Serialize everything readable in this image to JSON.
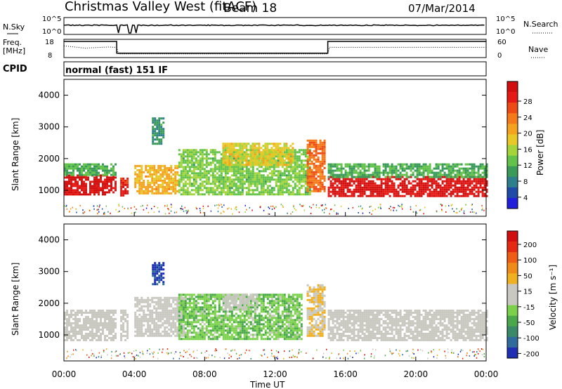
{
  "header": {
    "station": "Christmas Valley West (fitACF)",
    "beam": "Beam 18",
    "date": "07/Mar/2014"
  },
  "strips": {
    "nsky_label": "N.Sky",
    "nsky_ticks": [
      "10^5",
      "10^0"
    ],
    "nsearch_label": "N.Search",
    "freq_label": "Freq.",
    "freq_unit": "[MHz]",
    "freq_ticks": [
      "18",
      "8"
    ],
    "nave_label": "Nave",
    "nave_ticks": [
      "60",
      "0"
    ],
    "cpid_label": "CPID",
    "cpid_text": "normal (fast) 151 IF"
  },
  "axes": {
    "ylabel": "Slant Range [km]",
    "xlabel": "Time UT",
    "y_ticks": [
      "4000",
      "3000",
      "2000",
      "1000"
    ],
    "x_ticks": [
      "00:00",
      "04:00",
      "08:00",
      "12:00",
      "16:00",
      "20:00",
      "00:00"
    ]
  },
  "colorbars": {
    "power": {
      "label": "Power [dB]",
      "ticks": [
        "28",
        "24",
        "20",
        "16",
        "12",
        "8",
        "4"
      ],
      "colors": [
        "#1f1fdc",
        "#1e4ba8",
        "#2e7f8c",
        "#3a9a5a",
        "#62c24a",
        "#a3d53a",
        "#e8c826",
        "#f5a21e",
        "#f57a1a",
        "#ee4a14",
        "#e61a14",
        "#d20f0f"
      ]
    },
    "velocity": {
      "label": "Velocity [m s⁻¹]",
      "ticks": [
        "200",
        "100",
        "50",
        "15",
        "-15",
        "-50",
        "-100",
        "-200"
      ],
      "colors": [
        "#1e2fb4",
        "#2f6b9c",
        "#3a8a6a",
        "#4aa84a",
        "#7bd24a",
        "#c8c8c0",
        "#c8c8c0",
        "#f0b020",
        "#f08a1a",
        "#ee5c16",
        "#e62a12",
        "#d20f0f"
      ]
    }
  },
  "chart_data": [
    {
      "type": "heatmap",
      "quantity": "Power [dB]",
      "xlabel": "Time UT",
      "ylabel": "Slant Range [km]",
      "xlim": [
        0,
        24
      ],
      "ylim": [
        180,
        4500
      ],
      "clim": [
        0,
        30
      ],
      "regions": [
        {
          "t": [
            0,
            2.9
          ],
          "range": [
            850,
            1500
          ],
          "value": 28
        },
        {
          "t": [
            0,
            2.9
          ],
          "range": [
            1500,
            1850
          ],
          "value": 10
        },
        {
          "t": [
            3.2,
            3.6
          ],
          "range": [
            850,
            1400
          ],
          "value": 26
        },
        {
          "t": [
            4.0,
            6.5
          ],
          "range": [
            900,
            1800
          ],
          "value": 18
        },
        {
          "t": [
            5.0,
            5.6
          ],
          "range": [
            2500,
            3300
          ],
          "value": 8
        },
        {
          "t": [
            6.5,
            14.0
          ],
          "range": [
            900,
            2300
          ],
          "value": 12
        },
        {
          "t": [
            9.0,
            13.0
          ],
          "range": [
            1800,
            2500
          ],
          "value": 16
        },
        {
          "t": [
            13.8,
            14.8
          ],
          "range": [
            1000,
            2600
          ],
          "value": 22
        },
        {
          "t": [
            15.0,
            24
          ],
          "range": [
            850,
            1450
          ],
          "value": 28
        },
        {
          "t": [
            15.0,
            24
          ],
          "range": [
            1450,
            1850
          ],
          "value": 10
        }
      ]
    },
    {
      "type": "heatmap",
      "quantity": "Velocity [m s-1]",
      "xlabel": "Time UT",
      "ylabel": "Slant Range [km]",
      "xlim": [
        0,
        24
      ],
      "ylim": [
        180,
        4500
      ],
      "clim": [
        -250,
        250
      ],
      "regions": [
        {
          "t": [
            0,
            2.9
          ],
          "range": [
            850,
            1800
          ],
          "value": 0
        },
        {
          "t": [
            3.2,
            3.6
          ],
          "range": [
            850,
            1800
          ],
          "value": 0
        },
        {
          "t": [
            4.0,
            6.8
          ],
          "range": [
            1000,
            2200
          ],
          "value": 0
        },
        {
          "t": [
            5.0,
            5.6
          ],
          "range": [
            2600,
            3300
          ],
          "value": -220
        },
        {
          "t": [
            6.5,
            13.5
          ],
          "range": [
            900,
            2300
          ],
          "value": -70
        },
        {
          "t": [
            9.0,
            11.0
          ],
          "range": [
            1800,
            2300
          ],
          "value": 0
        },
        {
          "t": [
            13.8,
            14.8
          ],
          "range": [
            1000,
            2600
          ],
          "value": 40
        },
        {
          "t": [
            15.0,
            24
          ],
          "range": [
            850,
            1800
          ],
          "value": 0
        }
      ]
    }
  ]
}
